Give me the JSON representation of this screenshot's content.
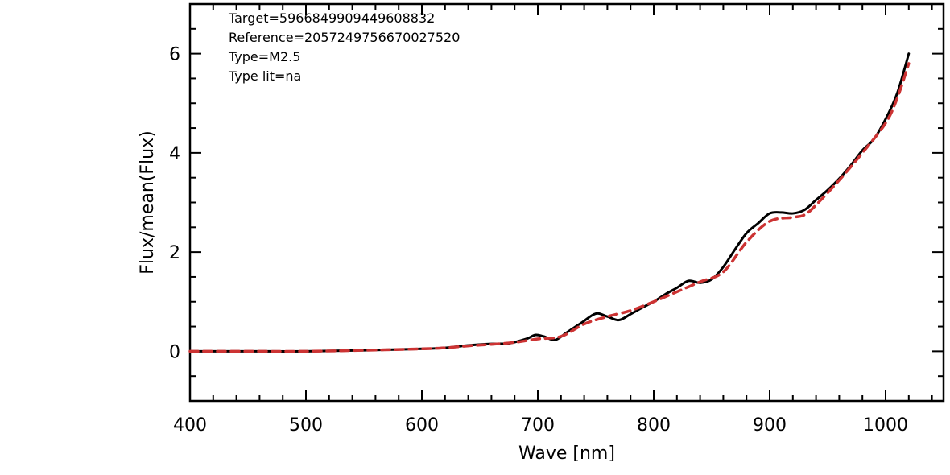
{
  "chart_data": {
    "type": "line",
    "title": "",
    "xlabel": "Wave [nm]",
    "ylabel": "Flux/mean(Flux)",
    "xlim": [
      400,
      1050
    ],
    "ylim": [
      -1,
      7
    ],
    "xticks": [
      400,
      500,
      600,
      700,
      800,
      900,
      1000
    ],
    "yticks": [
      0,
      2,
      4,
      6
    ],
    "grid": false,
    "annotations": [
      "Target=5966849909449608832",
      "Reference=2057249756670027520",
      "Type=M2.5",
      "Type lit=na"
    ],
    "series": [
      {
        "color": "#000000",
        "style": "solid",
        "x": [
          400,
          450,
          500,
          550,
          600,
          620,
          640,
          660,
          675,
          690,
          698,
          705,
          715,
          725,
          738,
          750,
          760,
          770,
          780,
          790,
          800,
          810,
          820,
          830,
          840,
          850,
          860,
          870,
          880,
          890,
          900,
          910,
          920,
          930,
          940,
          950,
          960,
          970,
          980,
          990,
          1000,
          1010,
          1020
        ],
        "y": [
          0.0,
          0.0,
          0.0,
          0.02,
          0.05,
          0.07,
          0.12,
          0.15,
          0.16,
          0.25,
          0.33,
          0.3,
          0.23,
          0.38,
          0.58,
          0.76,
          0.7,
          0.63,
          0.75,
          0.88,
          1.0,
          1.15,
          1.28,
          1.42,
          1.38,
          1.45,
          1.7,
          2.05,
          2.38,
          2.58,
          2.78,
          2.8,
          2.78,
          2.85,
          3.05,
          3.25,
          3.48,
          3.75,
          4.05,
          4.28,
          4.68,
          5.2,
          6.0
        ]
      },
      {
        "color": "#cc3333",
        "style": "dashed",
        "x": [
          400,
          450,
          500,
          550,
          600,
          620,
          640,
          660,
          680,
          700,
          720,
          740,
          760,
          780,
          800,
          820,
          840,
          860,
          880,
          900,
          920,
          930,
          940,
          960,
          980,
          1000,
          1010,
          1020
        ],
        "y": [
          0.0,
          0.0,
          0.0,
          0.02,
          0.05,
          0.07,
          0.11,
          0.14,
          0.18,
          0.25,
          0.3,
          0.55,
          0.7,
          0.82,
          1.0,
          1.2,
          1.4,
          1.6,
          2.2,
          2.62,
          2.7,
          2.75,
          2.95,
          3.45,
          4.0,
          4.6,
          5.1,
          5.8
        ]
      }
    ]
  }
}
